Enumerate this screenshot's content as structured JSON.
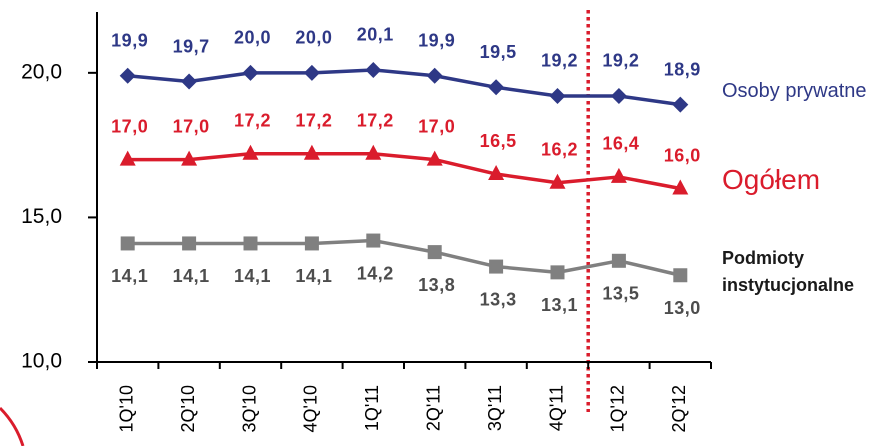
{
  "chart_data": {
    "type": "line",
    "categories": [
      "1Q'10",
      "2Q'10",
      "3Q'10",
      "4Q'10",
      "1Q'11",
      "2Q'11",
      "3Q'11",
      "4Q'11",
      "1Q'12",
      "2Q'12"
    ],
    "series": [
      {
        "name": "Osoby prywatne",
        "color": "#2E3886",
        "label_color": "#2E3886",
        "name_color": "#2E3886",
        "marker": "diamond",
        "values": [
          19.9,
          19.7,
          20.0,
          20.0,
          20.1,
          19.9,
          19.5,
          19.2,
          19.2,
          18.9
        ],
        "labels": [
          "19,9",
          "19,7",
          "20,0",
          "20,0",
          "20,1",
          "19,9",
          "19,5",
          "19,2",
          "19,2",
          "18,9"
        ]
      },
      {
        "name": "Ogółem",
        "color": "#DA1C2C",
        "label_color": "#DA1C2C",
        "name_color": "#DA1C2C",
        "marker": "triangle",
        "values": [
          17.0,
          17.0,
          17.2,
          17.2,
          17.2,
          17.0,
          16.5,
          16.2,
          16.4,
          16.0
        ],
        "labels": [
          "17,0",
          "17,0",
          "17,2",
          "17,2",
          "17,2",
          "17,0",
          "16,5",
          "16,2",
          "16,4",
          "16,0"
        ]
      },
      {
        "name": "Podmioty instytucjonalne",
        "color": "#808080",
        "label_color": "#4D4D4D",
        "name_color": "#1A1A1A",
        "marker": "square",
        "values": [
          14.1,
          14.1,
          14.1,
          14.1,
          14.2,
          13.8,
          13.3,
          13.1,
          13.5,
          13.0
        ],
        "labels": [
          "14,1",
          "14,1",
          "14,1",
          "14,1",
          "14,2",
          "13,8",
          "13,3",
          "13,1",
          "13,5",
          "13,0"
        ]
      }
    ],
    "ylim": [
      10,
      22
    ],
    "yticks": [
      10,
      15,
      20
    ],
    "ytick_labels": [
      "10,0",
      "15,0",
      "20,0"
    ],
    "grid": false,
    "legend": "right",
    "separator_after": "4Q'11",
    "separator_color": "#DA1C2C"
  }
}
